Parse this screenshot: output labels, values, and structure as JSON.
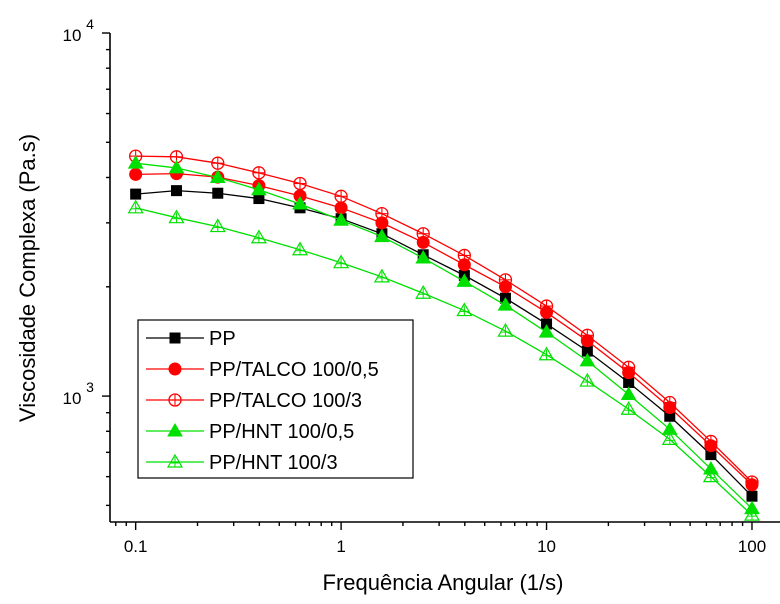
{
  "chart_data": {
    "type": "line",
    "xlabel": "Frequência Angular (1/s)",
    "ylabel": "Viscosidade Complexa (Pa.s)",
    "xscale": "log",
    "yscale": "log",
    "xlim": [
      0.075,
      140
    ],
    "ylim": [
      450,
      10000
    ],
    "xticks": [
      {
        "value": 0.1,
        "label": "0.1"
      },
      {
        "value": 1,
        "label": "1"
      },
      {
        "value": 10,
        "label": "10"
      },
      {
        "value": 100,
        "label": "100"
      }
    ],
    "yticks": [
      {
        "value": 1000,
        "base": "10",
        "exp": "3"
      },
      {
        "value": 10000,
        "base": "10",
        "exp": "4"
      }
    ],
    "legend_position": "bottom-left",
    "x": [
      0.1,
      0.158,
      0.251,
      0.398,
      0.631,
      1,
      1.58,
      2.51,
      3.98,
      6.31,
      10,
      15.8,
      25.1,
      39.8,
      63.1,
      100
    ],
    "series": [
      {
        "name": "PP",
        "color": "#000000",
        "marker": "square-filled",
        "values": [
          3600,
          3680,
          3620,
          3500,
          3300,
          3080,
          2800,
          2450,
          2150,
          1860,
          1580,
          1330,
          1090,
          880,
          690,
          530
        ]
      },
      {
        "name": "PP/TALCO 100/0,5",
        "color": "#ff0000",
        "marker": "circle-filled",
        "values": [
          4080,
          4100,
          4010,
          3800,
          3560,
          3300,
          3000,
          2650,
          2300,
          2000,
          1700,
          1420,
          1160,
          930,
          730,
          570
        ]
      },
      {
        "name": "PP/TALCO 100/3",
        "color": "#ff0000",
        "marker": "circle-plus-open",
        "values": [
          4580,
          4560,
          4380,
          4120,
          3850,
          3550,
          3180,
          2800,
          2440,
          2090,
          1770,
          1470,
          1200,
          960,
          750,
          580
        ]
      },
      {
        "name": "PP/HNT 100/0,5",
        "color": "#00e000",
        "marker": "triangle-filled",
        "values": [
          4380,
          4250,
          4000,
          3700,
          3380,
          3050,
          2750,
          2400,
          2070,
          1780,
          1500,
          1250,
          1010,
          810,
          630,
          490
        ]
      },
      {
        "name": "PP/HNT 100/3",
        "color": "#00e000",
        "marker": "triangle-plus-open",
        "values": [
          3300,
          3100,
          2930,
          2730,
          2530,
          2330,
          2130,
          1920,
          1720,
          1510,
          1300,
          1100,
          920,
          760,
          600,
          470
        ]
      }
    ]
  }
}
